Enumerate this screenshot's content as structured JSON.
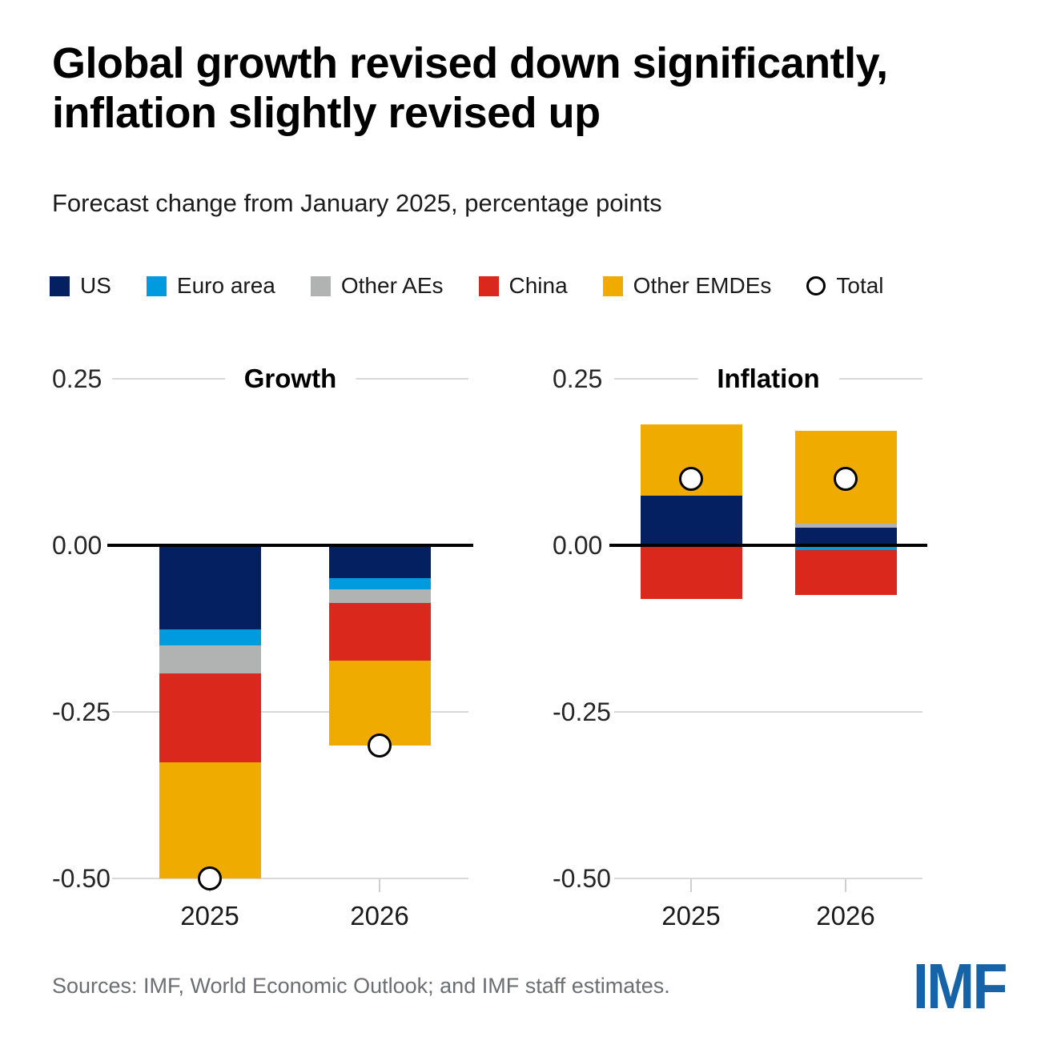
{
  "page": {
    "title_line1": "Global growth revised down significantly,",
    "title_line2": "inflation slightly revised up",
    "subtitle": "Forecast change from January 2025, percentage points",
    "source": "Sources: IMF, World Economic Outlook; and IMF staff estimates.",
    "logo_text": "IMF",
    "logo_color": "#1663a8"
  },
  "colors": {
    "us": "#042061",
    "euro_area": "#009ade",
    "other_aes": "#b1b3b3",
    "china": "#da291c",
    "other_emdes": "#f0ab00",
    "gridline": "#d9d9d9",
    "zero_line": "#000000",
    "total_marker_fill": "#ffffff",
    "total_marker_stroke": "#000000"
  },
  "legend": {
    "items": [
      {
        "label": "US",
        "type": "swatch",
        "color": "#042061"
      },
      {
        "label": "Euro area",
        "type": "swatch",
        "color": "#009ade"
      },
      {
        "label": "Other AEs",
        "type": "swatch",
        "color": "#b1b3b3"
      },
      {
        "label": "China",
        "type": "swatch",
        "color": "#da291c"
      },
      {
        "label": "Other EMDEs",
        "type": "swatch",
        "color": "#f0ab00"
      },
      {
        "label": "Total",
        "type": "circle"
      }
    ]
  },
  "chart_data": [
    {
      "type": "bar",
      "stacked": true,
      "title": "Growth",
      "categories": [
        "2025",
        "2026"
      ],
      "series": [
        {
          "name": "US",
          "color": "#042061",
          "values": [
            -0.126,
            -0.049
          ]
        },
        {
          "name": "Euro area",
          "color": "#009ade",
          "values": [
            -0.024,
            -0.017
          ]
        },
        {
          "name": "Other AEs",
          "color": "#b1b3b3",
          "values": [
            -0.042,
            -0.02
          ]
        },
        {
          "name": "China",
          "color": "#da291c",
          "values": [
            -0.134,
            -0.087
          ]
        },
        {
          "name": "Other EMDEs",
          "color": "#f0ab00",
          "values": [
            -0.174,
            -0.127
          ]
        }
      ],
      "totals": [
        -0.5,
        -0.3
      ],
      "total_marker": "circle",
      "ylim": [
        -0.5,
        0.25
      ],
      "yticks": [
        "0.25",
        "0.00",
        "-0.25",
        "-0.50"
      ],
      "grid": true,
      "legend_position": "top"
    },
    {
      "type": "bar",
      "stacked": true,
      "title": "Inflation",
      "categories": [
        "2025",
        "2026"
      ],
      "series": [
        {
          "name": "US",
          "color": "#042061",
          "values": [
            0.074,
            0.026
          ]
        },
        {
          "name": "Euro area",
          "color": "#009ade",
          "values": [
            0.0,
            -0.007
          ]
        },
        {
          "name": "Other AEs",
          "color": "#b1b3b3",
          "values": [
            0.0,
            0.006
          ]
        },
        {
          "name": "China",
          "color": "#da291c",
          "values": [
            -0.081,
            -0.068
          ]
        },
        {
          "name": "Other EMDEs",
          "color": "#f0ab00",
          "values": [
            0.108,
            0.14
          ]
        }
      ],
      "totals": [
        0.1,
        0.1
      ],
      "total_marker": "circle",
      "ylim": [
        -0.5,
        0.25
      ],
      "yticks": [
        "0.25",
        "0.00",
        "-0.25",
        "-0.50"
      ],
      "grid": true,
      "legend_position": "top"
    }
  ]
}
